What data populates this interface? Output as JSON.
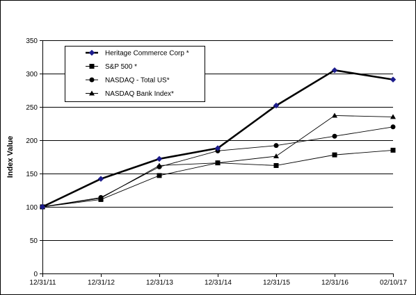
{
  "chart_data": {
    "type": "line",
    "ylabel": "Index Value",
    "xlabel": "",
    "categories": [
      "12/31/11",
      "12/31/12",
      "12/31/13",
      "12/31/14",
      "12/31/15",
      "12/31/16",
      "02/10/17"
    ],
    "ylim": [
      0,
      350
    ],
    "yticks": [
      0,
      50,
      100,
      150,
      200,
      250,
      300,
      350
    ],
    "grid": "horizontal",
    "legend_position": "top-left",
    "series": [
      {
        "name": "Heritage Commerce Corp *",
        "values": [
          100,
          142,
          172,
          188,
          252,
          305,
          291
        ],
        "marker": "diamond",
        "marker_color": "#1c1c8c",
        "line_color": "#000000",
        "line_weight": "thick"
      },
      {
        "name": "S&P 500 *",
        "values": [
          100,
          111,
          147,
          166,
          162,
          178,
          185
        ],
        "marker": "square",
        "marker_color": "#000000",
        "line_color": "#000000",
        "line_weight": "thin"
      },
      {
        "name": "NASDAQ - Total US*",
        "values": [
          100,
          114,
          160,
          184,
          192,
          206,
          220
        ],
        "marker": "circle",
        "marker_color": "#000000",
        "line_color": "#000000",
        "line_weight": "thin"
      },
      {
        "name": "NASDAQ Bank Index*",
        "values": [
          100,
          113,
          162,
          166,
          176,
          237,
          235
        ],
        "marker": "triangle",
        "marker_color": "#000000",
        "line_color": "#000000",
        "line_weight": "thin"
      }
    ]
  }
}
